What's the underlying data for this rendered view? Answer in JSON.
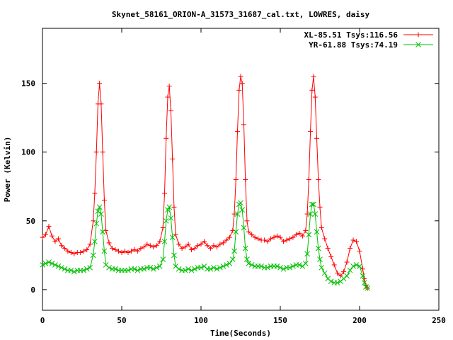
{
  "chart_data": {
    "type": "line",
    "title": "Skynet_58161_ORION-A_31573_31687_cal.txt, LOWRES, daisy",
    "xlabel": "Time(Seconds)",
    "ylabel": "Power (Kelvin)",
    "xlim": [
      0,
      250
    ],
    "ylim": [
      -15,
      190
    ],
    "xticks": [
      0,
      50,
      100,
      150,
      200,
      250
    ],
    "yticks": [
      0,
      50,
      100,
      150
    ],
    "grid": false,
    "legend_position": "top-right",
    "series": [
      {
        "name": "XL-85.51 Tsys:116.56",
        "color": "#ff0000",
        "marker": "plus",
        "x": [
          0,
          2,
          4,
          6,
          8,
          10,
          12,
          14,
          16,
          18,
          20,
          22,
          24,
          26,
          28,
          30,
          32,
          33,
          34,
          35,
          36,
          37,
          38,
          39,
          40,
          42,
          44,
          46,
          48,
          50,
          52,
          54,
          56,
          58,
          60,
          62,
          64,
          66,
          68,
          70,
          72,
          74,
          76,
          77,
          78,
          79,
          80,
          81,
          82,
          83,
          84,
          86,
          88,
          90,
          92,
          94,
          96,
          98,
          100,
          102,
          104,
          106,
          108,
          110,
          112,
          114,
          116,
          118,
          120,
          121,
          122,
          123,
          124,
          125,
          126,
          127,
          128,
          129,
          130,
          132,
          134,
          136,
          138,
          140,
          142,
          144,
          146,
          148,
          150,
          152,
          154,
          156,
          158,
          160,
          162,
          164,
          166,
          167,
          168,
          169,
          170,
          171,
          172,
          173,
          174,
          175,
          176,
          178,
          180,
          182,
          184,
          186,
          188,
          190,
          192,
          194,
          196,
          198,
          200,
          202,
          203,
          204,
          205
        ],
        "values": [
          38,
          40,
          46,
          39,
          35,
          37,
          32,
          30,
          28,
          27,
          26,
          27,
          27,
          28,
          29,
          33,
          50,
          70,
          100,
          135,
          150,
          135,
          100,
          65,
          43,
          34,
          30,
          29,
          28,
          27,
          28,
          27,
          28,
          29,
          28,
          30,
          31,
          33,
          32,
          31,
          32,
          35,
          45,
          70,
          110,
          140,
          148,
          130,
          95,
          60,
          40,
          33,
          30,
          31,
          33,
          29,
          30,
          32,
          33,
          35,
          32,
          30,
          32,
          31,
          33,
          34,
          36,
          38,
          43,
          55,
          80,
          115,
          145,
          155,
          150,
          120,
          80,
          50,
          42,
          40,
          38,
          37,
          36,
          36,
          35,
          37,
          38,
          39,
          38,
          35,
          36,
          37,
          38,
          40,
          41,
          39,
          43,
          55,
          80,
          115,
          145,
          155,
          140,
          110,
          80,
          60,
          45,
          37,
          30,
          24,
          18,
          12,
          10,
          13,
          20,
          30,
          36,
          35,
          28,
          15,
          8,
          3,
          1
        ]
      },
      {
        "name": "YR-61.88 Tsys:74.19",
        "color": "#00c000",
        "marker": "x",
        "x": [
          0,
          2,
          4,
          6,
          8,
          10,
          12,
          14,
          16,
          18,
          20,
          22,
          24,
          26,
          28,
          30,
          32,
          33,
          34,
          35,
          36,
          37,
          38,
          39,
          40,
          42,
          44,
          46,
          48,
          50,
          52,
          54,
          56,
          58,
          60,
          62,
          64,
          66,
          68,
          70,
          72,
          74,
          76,
          77,
          78,
          79,
          80,
          81,
          82,
          83,
          84,
          86,
          88,
          90,
          92,
          94,
          96,
          98,
          100,
          102,
          104,
          106,
          108,
          110,
          112,
          114,
          116,
          118,
          120,
          121,
          122,
          123,
          124,
          125,
          126,
          127,
          128,
          129,
          130,
          132,
          134,
          136,
          138,
          140,
          142,
          144,
          146,
          148,
          150,
          152,
          154,
          156,
          158,
          160,
          162,
          164,
          166,
          167,
          168,
          169,
          170,
          171,
          172,
          173,
          174,
          175,
          176,
          178,
          180,
          182,
          184,
          186,
          188,
          190,
          192,
          194,
          196,
          198,
          200,
          202,
          203,
          204,
          205
        ],
        "values": [
          18,
          19,
          20,
          19,
          18,
          17,
          16,
          15,
          14,
          14,
          13,
          14,
          14,
          14,
          15,
          16,
          25,
          35,
          48,
          57,
          60,
          55,
          42,
          28,
          18,
          16,
          15,
          15,
          14,
          14,
          14,
          14,
          15,
          15,
          14,
          15,
          15,
          16,
          16,
          15,
          16,
          17,
          22,
          35,
          50,
          58,
          60,
          52,
          38,
          25,
          17,
          15,
          14,
          14,
          15,
          14,
          15,
          16,
          16,
          17,
          15,
          15,
          16,
          15,
          16,
          17,
          18,
          19,
          22,
          28,
          42,
          55,
          62,
          63,
          58,
          45,
          30,
          22,
          19,
          18,
          17,
          17,
          17,
          16,
          16,
          17,
          17,
          17,
          16,
          15,
          16,
          16,
          17,
          18,
          18,
          17,
          19,
          26,
          40,
          55,
          62,
          62,
          55,
          42,
          30,
          22,
          16,
          12,
          8,
          6,
          5,
          5,
          6,
          8,
          10,
          14,
          17,
          18,
          17,
          10,
          5,
          2,
          1
        ]
      }
    ]
  }
}
